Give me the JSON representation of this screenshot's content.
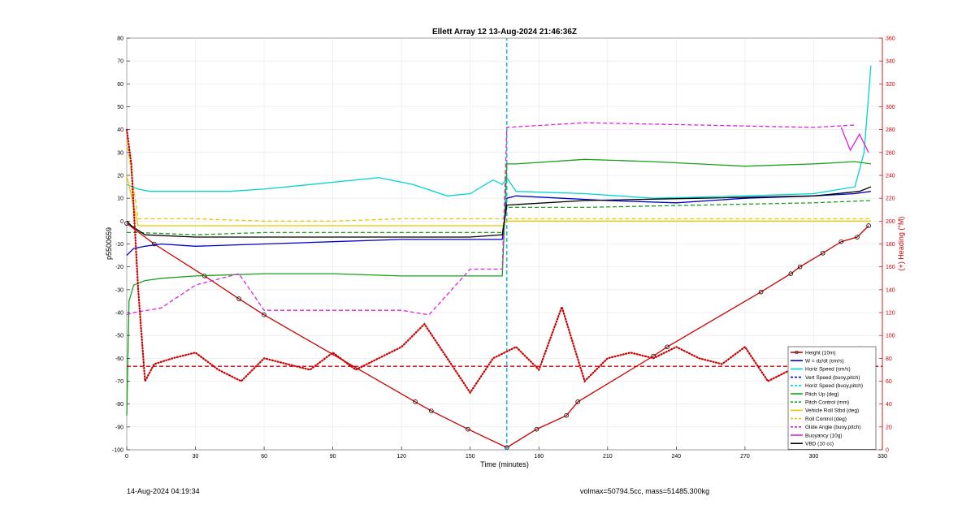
{
  "chart_data": {
    "type": "line",
    "title": "Ellett Array 12 13-Aug-2024 21:46:36Z",
    "xlabel": "Time (minutes)",
    "ylabel": "p5500659",
    "ylabel_right": "(+) Heading (°M)",
    "xlim": [
      0,
      330
    ],
    "ylim": [
      -100,
      80
    ],
    "ylim_right": [
      0,
      360
    ],
    "xticks": [
      0,
      30,
      60,
      90,
      120,
      150,
      180,
      210,
      240,
      270,
      300,
      330
    ],
    "yticks": [
      -100,
      -90,
      -80,
      -70,
      -60,
      -50,
      -40,
      -30,
      -20,
      -10,
      0,
      10,
      20,
      30,
      40,
      50,
      60,
      70,
      80
    ],
    "yticks_right": [
      0,
      20,
      40,
      60,
      80,
      100,
      120,
      140,
      160,
      180,
      200,
      220,
      240,
      260,
      280,
      300,
      320,
      340,
      360
    ],
    "grid": true,
    "legend_position": "bottom-right",
    "apogee_time": 166,
    "series": [
      {
        "name": "Height (10m)",
        "color": "#cc0000",
        "style": "solid",
        "markers": true,
        "x": [
          0,
          12,
          34,
          49,
          60,
          126,
          133,
          149,
          166,
          179,
          192,
          197,
          230,
          236,
          277,
          290,
          294,
          304,
          312,
          319,
          324
        ],
        "y": [
          -1,
          -10,
          -24,
          -34,
          -41,
          -79,
          -83,
          -91,
          -99,
          -91,
          -85,
          -79,
          -59,
          -55,
          -31,
          -23,
          -20,
          -14,
          -9,
          -7,
          -2
        ]
      },
      {
        "name": "W = dz/dt (cm/s)",
        "color": "#0000cc",
        "style": "solid",
        "x": [
          0,
          3,
          8,
          15,
          30,
          60,
          90,
          120,
          150,
          164,
          166,
          170,
          190,
          210,
          240,
          270,
          300,
          318,
          325
        ],
        "y": [
          -15,
          -12,
          -11,
          -10,
          -11,
          -10,
          -9,
          -8,
          -8,
          -8,
          10,
          11,
          10,
          9,
          8,
          10,
          11,
          12,
          13
        ]
      },
      {
        "name": "Horiz Speed (cm/s)",
        "color": "#00d4d4",
        "style": "solid",
        "x": [
          0,
          5,
          10,
          20,
          30,
          45,
          60,
          80,
          100,
          110,
          125,
          140,
          150,
          160,
          164,
          166,
          170,
          200,
          230,
          270,
          300,
          318,
          322,
          325
        ],
        "y": [
          16,
          14,
          13,
          13,
          13,
          13,
          14,
          16,
          18,
          19,
          16,
          11,
          12,
          18,
          16,
          19,
          13,
          12,
          10,
          11,
          12,
          15,
          30,
          68
        ]
      },
      {
        "name": "Vert Speed (buoy,pitch)",
        "color": "#0000cc",
        "style": "dashed",
        "x": [
          166,
          166
        ],
        "y": [
          -100,
          80
        ]
      },
      {
        "name": "Horiz Speed (buoy,pitch)",
        "color": "#00d4d4",
        "style": "dashed",
        "x": [
          166,
          166
        ],
        "y": [
          -100,
          80
        ]
      },
      {
        "name": "Pitch Up (deg)",
        "color": "#1aa01a",
        "style": "solid",
        "x": [
          0,
          1,
          3,
          8,
          15,
          30,
          60,
          90,
          120,
          150,
          164,
          166,
          170,
          200,
          230,
          270,
          300,
          318,
          325
        ],
        "y": [
          -85,
          -35,
          -28,
          -26,
          -25,
          -24,
          -23,
          -23,
          -24,
          -24,
          -24,
          25,
          25,
          27,
          26,
          24,
          25,
          26,
          25
        ]
      },
      {
        "name": "Pitch Control (mm)",
        "color": "#1aa01a",
        "style": "dashed",
        "x": [
          0,
          5,
          30,
          60,
          100,
          150,
          164,
          166,
          200,
          250,
          300,
          325
        ],
        "y": [
          -5,
          -5,
          -6,
          -5,
          -5,
          -5,
          -5,
          6,
          6,
          7,
          8,
          9
        ]
      },
      {
        "name": "Vehicle Roll Stbd (deg)",
        "color": "#e6c800",
        "style": "solid",
        "x": [
          0,
          5,
          10,
          30,
          60,
          90,
          120,
          150,
          164,
          166,
          200,
          250,
          300,
          325
        ],
        "y": [
          20,
          -2,
          -2,
          -2,
          -2,
          -2,
          -2,
          -2,
          -2,
          0,
          0,
          0,
          0,
          0
        ]
      },
      {
        "name": "Roll Control (deg)",
        "color": "#e6c800",
        "style": "dashed",
        "x": [
          0,
          5,
          10,
          30,
          60,
          90,
          120,
          150,
          164,
          166,
          200,
          250,
          300,
          325
        ],
        "y": [
          35,
          1,
          1,
          1,
          0,
          0,
          1,
          1,
          1,
          1,
          1,
          1,
          1,
          1
        ]
      },
      {
        "name": "Glide Angle (buoy,pitch)",
        "color": "#e020e0",
        "style": "dashed",
        "x": [
          0,
          3,
          15,
          30,
          49,
          60,
          90,
          120,
          132,
          150,
          164,
          166,
          200,
          250,
          300,
          318
        ],
        "y": [
          -41,
          -40,
          -38,
          -28,
          -23,
          -39,
          -39,
          -39,
          -41,
          -21,
          -21,
          41,
          43,
          42,
          41,
          42
        ]
      },
      {
        "name": "Buoyancy (10g)",
        "color": "#e020e0",
        "style": "solid",
        "x": [
          312,
          316,
          320,
          324
        ],
        "y": [
          41,
          31,
          38,
          30
        ]
      },
      {
        "name": "VBD (10 cc)",
        "color": "#000000",
        "style": "solid",
        "x": [
          0,
          2,
          8,
          30,
          60,
          100,
          150,
          164,
          166,
          200,
          250,
          300,
          320,
          325
        ],
        "y": [
          0,
          -2,
          -6,
          -7,
          -7,
          -7,
          -7,
          -6,
          7,
          9,
          10,
          11,
          13,
          15
        ]
      },
      {
        "name": "Heading",
        "color": "#cc0000",
        "style": "dashed",
        "axis": "right",
        "x": [
          0,
          330
        ],
        "y": [
          73,
          73
        ]
      },
      {
        "name": "Heading (points)",
        "color": "#cc0000",
        "style": "dotted",
        "axis": "right",
        "x": [
          0,
          2,
          5,
          8,
          12,
          20,
          30,
          40,
          50,
          60,
          70,
          80,
          90,
          100,
          110,
          120,
          130,
          140,
          150,
          160,
          170,
          180,
          190,
          200,
          210,
          220,
          230,
          240,
          250,
          260,
          270,
          280,
          290,
          300,
          310,
          320,
          325
        ],
        "y": [
          280,
          250,
          140,
          60,
          75,
          80,
          85,
          70,
          60,
          80,
          75,
          70,
          85,
          70,
          80,
          90,
          110,
          80,
          50,
          80,
          90,
          70,
          125,
          60,
          80,
          85,
          80,
          90,
          80,
          75,
          90,
          60,
          70,
          80,
          60,
          90,
          85
        ]
      }
    ]
  },
  "legend": [
    {
      "label": "Height (10m)",
      "color": "#cc0000",
      "style": "solid",
      "marker": true
    },
    {
      "label": "W = dz/dt (cm/s)",
      "color": "#0000cc",
      "style": "solid"
    },
    {
      "label": "Horiz Speed (cm/s)",
      "color": "#00d4d4",
      "style": "solid"
    },
    {
      "label": "Vert Speed (buoy,pitch)",
      "color": "#0000cc",
      "style": "dashed"
    },
    {
      "label": "Horiz Speed (buoy,pitch)",
      "color": "#00d4d4",
      "style": "dashed"
    },
    {
      "label": "Pitch Up (deg)",
      "color": "#1aa01a",
      "style": "solid"
    },
    {
      "label": "Pitch Control (mm)",
      "color": "#1aa01a",
      "style": "dashed"
    },
    {
      "label": "Vehicle Roll Stbd (deg)",
      "color": "#e6c800",
      "style": "solid"
    },
    {
      "label": "Roll Control (deg)",
      "color": "#e6c800",
      "style": "dashed"
    },
    {
      "label": "Glide Angle (buoy,pitch)",
      "color": "#e020e0",
      "style": "dashed"
    },
    {
      "label": "Buoyancy (10g)",
      "color": "#e020e0",
      "style": "solid"
    },
    {
      "label": "VBD (10 cc)",
      "color": "#000000",
      "style": "solid"
    }
  ],
  "footer": {
    "timestamp": "14-Aug-2024 04:19:34",
    "stats": "volmax=50794.5cc, mass=51485.300kg"
  }
}
